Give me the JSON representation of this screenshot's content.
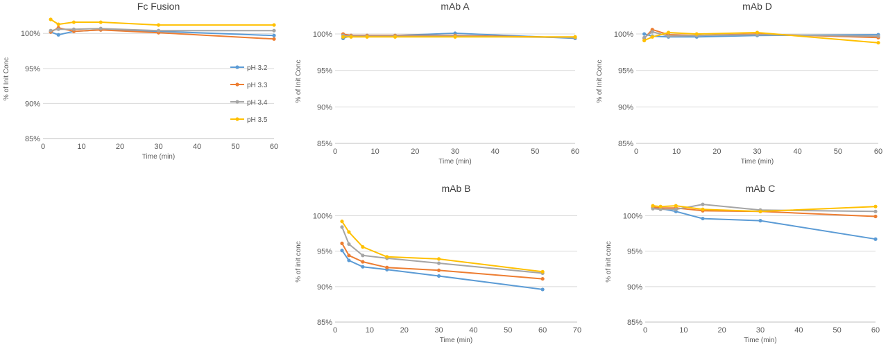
{
  "chart_data": [
    {
      "type": "line",
      "title": "Fc Fusion",
      "xlabel": "Time (min)",
      "ylabel": "% of Init Conc",
      "xlim": [
        0,
        60
      ],
      "ylim": [
        85,
        102
      ],
      "x_ticks": [
        0,
        10,
        20,
        30,
        40,
        50,
        60
      ],
      "y_ticks": [
        "85%",
        "90%",
        "95%",
        "100%"
      ],
      "y_tick_values": [
        85,
        90,
        95,
        100
      ],
      "grid": "horizontal",
      "legend": "right",
      "x": [
        2,
        4,
        8,
        15,
        30,
        60
      ],
      "series": [
        {
          "name": "pH 3.2",
          "color": "#5B9BD5",
          "values": [
            100.2,
            99.8,
            100.3,
            100.5,
            100.3,
            99.7
          ]
        },
        {
          "name": "pH 3.3",
          "color": "#ED7D31",
          "values": [
            100.2,
            100.8,
            100.3,
            100.5,
            100.1,
            99.2
          ]
        },
        {
          "name": "pH 3.4",
          "color": "#A5A5A5",
          "values": [
            100.4,
            100.6,
            100.6,
            100.7,
            100.4,
            100.4
          ]
        },
        {
          "name": "pH 3.5",
          "color": "#FFC000",
          "values": [
            102.0,
            101.3,
            101.6,
            101.6,
            101.2,
            101.2
          ]
        }
      ]
    },
    {
      "type": "line",
      "title": "mAb A",
      "xlabel": "Time (min)",
      "ylabel": "% of Init Conc",
      "xlim": [
        0,
        60
      ],
      "ylim": [
        85,
        102
      ],
      "x_ticks": [
        0,
        10,
        20,
        30,
        40,
        50,
        60
      ],
      "y_ticks": [
        "85%",
        "90%",
        "95%",
        "100%"
      ],
      "y_tick_values": [
        85,
        90,
        95,
        100
      ],
      "grid": "horizontal",
      "x": [
        2,
        4,
        8,
        15,
        30,
        60
      ],
      "series": [
        {
          "name": "pH 3.2",
          "color": "#5B9BD5",
          "values": [
            99.4,
            99.8,
            99.8,
            99.8,
            100.1,
            99.4
          ]
        },
        {
          "name": "pH 3.3",
          "color": "#ED7D31",
          "values": [
            100.0,
            99.8,
            99.8,
            99.8,
            99.8,
            99.5
          ]
        },
        {
          "name": "pH 3.4",
          "color": "#A5A5A5",
          "values": [
            99.8,
            99.7,
            99.7,
            99.7,
            99.7,
            99.5
          ]
        },
        {
          "name": "pH 3.5",
          "color": "#FFC000",
          "values": [
            99.6,
            99.6,
            99.6,
            99.6,
            99.6,
            99.6
          ]
        }
      ]
    },
    {
      "type": "line",
      "title": "mAb D",
      "xlabel": "Time (min)",
      "ylabel": "% of Init Conc",
      "xlim": [
        0,
        60
      ],
      "ylim": [
        85,
        102
      ],
      "x_ticks": [
        0,
        10,
        20,
        30,
        40,
        50,
        60
      ],
      "y_ticks": [
        "85%",
        "90%",
        "95%",
        "100%"
      ],
      "y_tick_values": [
        85,
        90,
        95,
        100
      ],
      "grid": "horizontal",
      "x": [
        2,
        4,
        8,
        15,
        30,
        60
      ],
      "series": [
        {
          "name": "pH 3.2",
          "color": "#5B9BD5",
          "values": [
            100.0,
            99.7,
            99.6,
            99.6,
            99.8,
            99.9
          ]
        },
        {
          "name": "pH 3.3",
          "color": "#ED7D31",
          "values": [
            99.4,
            100.6,
            99.9,
            99.8,
            100.0,
            99.5
          ]
        },
        {
          "name": "pH 3.4",
          "color": "#A5A5A5",
          "values": [
            99.5,
            100.3,
            99.7,
            99.8,
            99.9,
            99.7
          ]
        },
        {
          "name": "pH 3.5",
          "color": "#FFC000",
          "values": [
            99.1,
            99.6,
            100.2,
            100.0,
            100.2,
            98.8
          ]
        }
      ]
    },
    {
      "type": "line",
      "title": "mAb B",
      "xlabel": "Time (min)",
      "ylabel": "% of init conc",
      "xlim": [
        0,
        70
      ],
      "ylim": [
        85,
        102
      ],
      "x_ticks": [
        0,
        10,
        20,
        30,
        40,
        50,
        60,
        70
      ],
      "y_ticks": [
        "85%",
        "90%",
        "95%",
        "100%"
      ],
      "y_tick_values": [
        85,
        90,
        95,
        100
      ],
      "grid": "horizontal",
      "x": [
        2,
        4,
        8,
        15,
        30,
        60
      ],
      "series": [
        {
          "name": "pH 3.2",
          "color": "#5B9BD5",
          "values": [
            95.1,
            93.7,
            92.8,
            92.4,
            91.5,
            89.6
          ]
        },
        {
          "name": "pH 3.3",
          "color": "#ED7D31",
          "values": [
            96.1,
            94.4,
            93.5,
            92.7,
            92.3,
            91.1
          ]
        },
        {
          "name": "pH 3.4",
          "color": "#A5A5A5",
          "values": [
            98.4,
            96.0,
            94.4,
            94.0,
            93.3,
            91.9
          ]
        },
        {
          "name": "pH 3.5",
          "color": "#FFC000",
          "values": [
            99.2,
            97.7,
            95.6,
            94.2,
            93.9,
            92.1
          ]
        }
      ]
    },
    {
      "type": "line",
      "title": "mAb C",
      "xlabel": "Time (min)",
      "ylabel": "% of init conc",
      "xlim": [
        0,
        60
      ],
      "ylim": [
        85,
        102
      ],
      "x_ticks": [
        0,
        10,
        20,
        30,
        40,
        50,
        60
      ],
      "y_ticks": [
        "85%",
        "90%",
        "95%",
        "100%"
      ],
      "y_tick_values": [
        85,
        90,
        95,
        100
      ],
      "grid": "horizontal",
      "x": [
        2,
        4,
        8,
        15,
        30,
        60
      ],
      "series": [
        {
          "name": "pH 3.2",
          "color": "#5B9BD5",
          "values": [
            101.1,
            101.0,
            100.6,
            99.6,
            99.3,
            96.7
          ]
        },
        {
          "name": "pH 3.3",
          "color": "#ED7D31",
          "values": [
            101.2,
            101.1,
            101.1,
            100.7,
            100.6,
            99.9
          ]
        },
        {
          "name": "pH 3.4",
          "color": "#A5A5A5",
          "values": [
            101.0,
            100.9,
            100.9,
            101.6,
            100.8,
            100.6
          ]
        },
        {
          "name": "pH 3.5",
          "color": "#FFC000",
          "values": [
            101.4,
            101.3,
            101.4,
            100.9,
            100.6,
            101.3
          ]
        }
      ]
    }
  ]
}
